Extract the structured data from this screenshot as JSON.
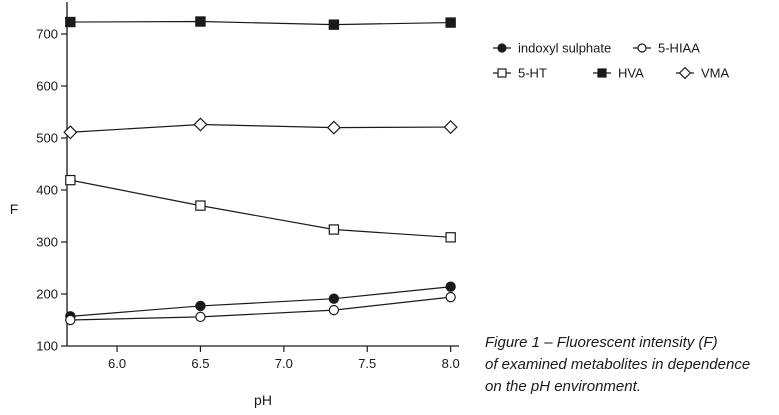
{
  "caption": "Figure 1 – Fluorescent intensity (F)\nof examined metabolites in dependence\non the pH environment.",
  "chart_data": {
    "type": "line",
    "title": "",
    "xlabel": "pH",
    "ylabel": "F",
    "xlim": [
      5.7,
      8.05
    ],
    "ylim": [
      100,
      750
    ],
    "xticks": [
      6.0,
      6.5,
      7.0,
      7.5,
      8.0
    ],
    "xtick_labels": [
      "6.0",
      "6.5",
      "7.0",
      "7.5",
      "8.0"
    ],
    "yticks": [
      100,
      200,
      300,
      400,
      500,
      600,
      700
    ],
    "ytick_labels": [
      "100",
      "200",
      "300",
      "400",
      "500",
      "600",
      "700"
    ],
    "grid": false,
    "legend_position": "top-right",
    "x": [
      5.72,
      6.5,
      7.3,
      8.0
    ],
    "series": [
      {
        "name": "indoxyl sulphate",
        "marker": "filled-circle",
        "values": [
          157,
          177,
          191,
          214
        ]
      },
      {
        "name": "5-HIAA",
        "marker": "open-circle",
        "values": [
          150,
          156,
          169,
          194
        ]
      },
      {
        "name": "5-HT",
        "marker": "open-square",
        "values": [
          419,
          370,
          324,
          309
        ]
      },
      {
        "name": "HVA",
        "marker": "filled-square",
        "values": [
          723,
          724,
          718,
          722
        ]
      },
      {
        "name": "VMA",
        "marker": "open-diamond",
        "values": [
          511,
          526,
          520,
          521
        ]
      }
    ],
    "line_color": "#1a1a1a"
  }
}
